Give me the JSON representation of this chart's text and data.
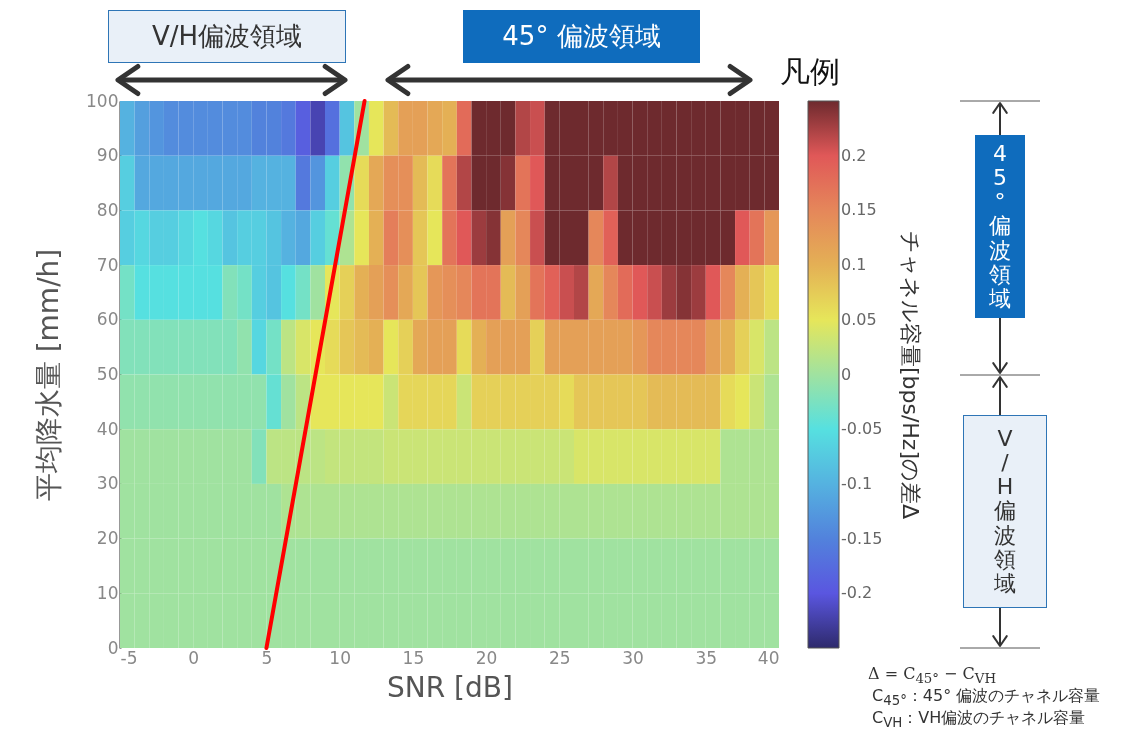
{
  "chart_data": {
    "type": "heatmap",
    "xlabel": "SNR [dB]",
    "ylabel": "平均降水量 [mm/h]",
    "clabel": "チャネル容量[bps/Hz]の差Δ",
    "x": [
      -4.5,
      -3.5,
      -2.5,
      -1.5,
      -0.5,
      0.5,
      1.5,
      2.5,
      3.5,
      4.5,
      5.5,
      6.5,
      7.5,
      8.5,
      9.5,
      10.5,
      11.5,
      12.5,
      13.5,
      14.5,
      15.5,
      16.5,
      17.5,
      18.5,
      19.5,
      20.5,
      21.5,
      22.5,
      23.5,
      24.5,
      25.5,
      26.5,
      27.5,
      28.5,
      29.5,
      30.5,
      31.5,
      32.5,
      33.5,
      34.5,
      35.5,
      36.5,
      37.5,
      38.5,
      39.5
    ],
    "y": [
      95,
      85,
      75,
      65,
      55,
      45,
      35,
      25,
      15,
      5
    ],
    "xlim": [
      -5,
      40
    ],
    "xticks": [
      -5,
      0,
      5,
      10,
      15,
      20,
      25,
      30,
      35,
      40
    ],
    "ylim": [
      0,
      100
    ],
    "yticks": [
      0,
      10,
      20,
      30,
      40,
      50,
      60,
      70,
      80,
      90,
      100
    ],
    "clim": [
      -0.25,
      0.25
    ],
    "cticks": [
      -0.2,
      -0.15,
      -0.1,
      -0.05,
      0,
      0.05,
      0.1,
      0.15,
      0.2
    ],
    "cells": [
      [
        -0.1,
        -0.12,
        -0.13,
        -0.14,
        -0.14,
        -0.14,
        -0.14,
        -0.14,
        -0.14,
        -0.15,
        -0.15,
        -0.16,
        -0.19,
        -0.22,
        -0.17,
        -0.08,
        0.0,
        0.05,
        0.09,
        0.12,
        0.12,
        0.11,
        0.1,
        0.18,
        0.25,
        0.25,
        0.25,
        0.22,
        0.21,
        0.25,
        0.25,
        0.25,
        0.25,
        0.25,
        0.25,
        0.25,
        0.25,
        0.25,
        0.25,
        0.25,
        0.25,
        0.25,
        0.25,
        0.25,
        0.25
      ],
      [
        -0.07,
        -0.11,
        -0.11,
        -0.11,
        -0.11,
        -0.11,
        -0.11,
        -0.11,
        -0.11,
        -0.1,
        -0.1,
        -0.1,
        -0.16,
        -0.13,
        -0.07,
        -0.01,
        0.06,
        0.11,
        0.14,
        0.14,
        0.09,
        0.06,
        0.17,
        0.22,
        0.25,
        0.25,
        0.24,
        0.17,
        0.2,
        0.25,
        0.25,
        0.25,
        0.25,
        0.22,
        0.25,
        0.25,
        0.25,
        0.25,
        0.25,
        0.25,
        0.25,
        0.25,
        0.25,
        0.25,
        0.25
      ],
      [
        -0.07,
        -0.06,
        -0.07,
        -0.07,
        -0.06,
        -0.05,
        -0.06,
        -0.08,
        -0.07,
        -0.07,
        -0.08,
        -0.1,
        -0.11,
        -0.07,
        -0.04,
        0.01,
        0.05,
        0.1,
        0.16,
        0.14,
        0.08,
        0.05,
        0.17,
        0.2,
        0.23,
        0.24,
        0.12,
        0.15,
        0.21,
        0.25,
        0.25,
        0.25,
        0.15,
        0.19,
        0.25,
        0.25,
        0.25,
        0.25,
        0.25,
        0.25,
        0.25,
        0.25,
        0.2,
        0.17,
        0.13
      ],
      [
        -0.03,
        -0.05,
        -0.05,
        -0.05,
        -0.05,
        -0.05,
        -0.05,
        -0.02,
        -0.03,
        -0.07,
        -0.08,
        -0.05,
        -0.03,
        0.0,
        0.05,
        0.07,
        0.1,
        0.12,
        0.14,
        0.11,
        0.08,
        0.13,
        0.14,
        0.15,
        0.17,
        0.17,
        0.09,
        0.12,
        0.17,
        0.19,
        0.21,
        0.22,
        0.11,
        0.15,
        0.18,
        0.2,
        0.21,
        0.23,
        0.24,
        0.23,
        0.2,
        0.15,
        0.1,
        0.08,
        0.06
      ],
      [
        -0.02,
        -0.02,
        -0.02,
        -0.02,
        -0.02,
        -0.02,
        -0.02,
        -0.02,
        -0.01,
        -0.06,
        -0.03,
        0.02,
        0.04,
        0.05,
        0.06,
        0.08,
        0.09,
        0.1,
        0.05,
        0.07,
        0.11,
        0.12,
        0.12,
        0.06,
        0.1,
        0.12,
        0.12,
        0.12,
        0.07,
        0.12,
        0.12,
        0.12,
        0.12,
        0.12,
        0.12,
        0.13,
        0.15,
        0.15,
        0.15,
        0.15,
        0.12,
        0.1,
        0.07,
        0.04,
        0.02
      ],
      [
        -0.01,
        -0.01,
        -0.01,
        -0.01,
        -0.01,
        -0.01,
        -0.01,
        -0.01,
        -0.01,
        -0.01,
        -0.04,
        0.0,
        0.02,
        0.05,
        0.05,
        0.05,
        0.05,
        0.05,
        0.03,
        0.065,
        0.065,
        0.065,
        0.065,
        0.03,
        0.07,
        0.07,
        0.07,
        0.07,
        0.07,
        0.07,
        0.06,
        0.08,
        0.08,
        0.08,
        0.08,
        0.08,
        0.09,
        0.09,
        0.09,
        0.09,
        0.09,
        0.06,
        0.05,
        0.03,
        0.01
      ],
      [
        0.0,
        0.0,
        0.0,
        0.0,
        0.0,
        0.0,
        0.0,
        0.0,
        0.0,
        -0.02,
        0.02,
        0.02,
        0.02,
        0.02,
        0.025,
        0.025,
        0.025,
        0.025,
        0.03,
        0.03,
        0.03,
        0.03,
        0.03,
        0.03,
        0.03,
        0.03,
        0.03,
        0.03,
        0.03,
        0.03,
        0.03,
        0.04,
        0.04,
        0.04,
        0.04,
        0.04,
        0.04,
        0.04,
        0.04,
        0.04,
        0.04,
        0.01,
        0.01,
        0.01,
        0.01
      ],
      [
        0.0,
        0.0,
        0.0,
        0.0,
        0.0,
        0.0,
        0.0,
        0.0,
        0.0,
        0.0,
        0.0,
        0.01,
        0.01,
        0.01,
        0.01,
        0.01,
        0.01,
        0.01,
        0.01,
        0.01,
        0.01,
        0.01,
        0.01,
        0.01,
        0.01,
        0.01,
        0.01,
        0.01,
        0.01,
        0.01,
        0.01,
        0.01,
        0.01,
        0.01,
        0.01,
        0.01,
        0.01,
        0.01,
        0.01,
        0.01,
        0.01,
        0.01,
        0.01,
        0.01,
        0.01
      ],
      [
        0.0,
        0.0,
        0.0,
        0.0,
        0.0,
        0.0,
        0.0,
        0.0,
        0.0,
        0.0,
        0.0,
        0.0,
        0.0,
        0.0,
        0.0,
        0.0,
        0.0,
        0.0,
        0.0,
        0.0,
        0.0,
        0.0,
        0.0,
        0.0,
        0.0,
        0.0,
        0.0,
        0.0,
        0.0,
        0.0,
        0.0,
        0.0,
        0.0,
        0.0,
        0.0,
        0.0,
        0.0,
        0.0,
        0.0,
        0.0,
        0.0,
        0.0,
        0.0,
        0.0,
        0.0
      ],
      [
        0.0,
        0.0,
        0.0,
        0.0,
        0.0,
        0.0,
        0.0,
        0.0,
        0.0,
        0.0,
        0.0,
        0.0,
        0.0,
        0.0,
        0.0,
        0.0,
        0.0,
        0.0,
        0.0,
        0.0,
        0.0,
        0.0,
        0.0,
        0.0,
        0.0,
        0.0,
        0.0,
        0.0,
        0.0,
        0.0,
        0.0,
        0.0,
        0.0,
        0.0,
        0.0,
        0.0,
        0.0,
        0.0,
        0.0,
        0.0,
        0.0,
        0.0,
        0.0,
        0.0,
        0.0
      ]
    ],
    "series": [
      {
        "type": "line",
        "color": "#ff0000",
        "x": [
          5,
          11.7
        ],
        "values": [
          0,
          100
        ]
      }
    ],
    "annotations": [
      "V/H偏波領域",
      "45° 偏波領域",
      "凡例",
      "45° 偏波領域",
      "V/H偏波領域",
      "Δ = C$_{45°}$ − C$_{VH}$",
      "C$_{45°}$：45° 偏波のチャネル容量",
      "C$_{VH}$：VH偏波のチャネル容量"
    ]
  }
}
